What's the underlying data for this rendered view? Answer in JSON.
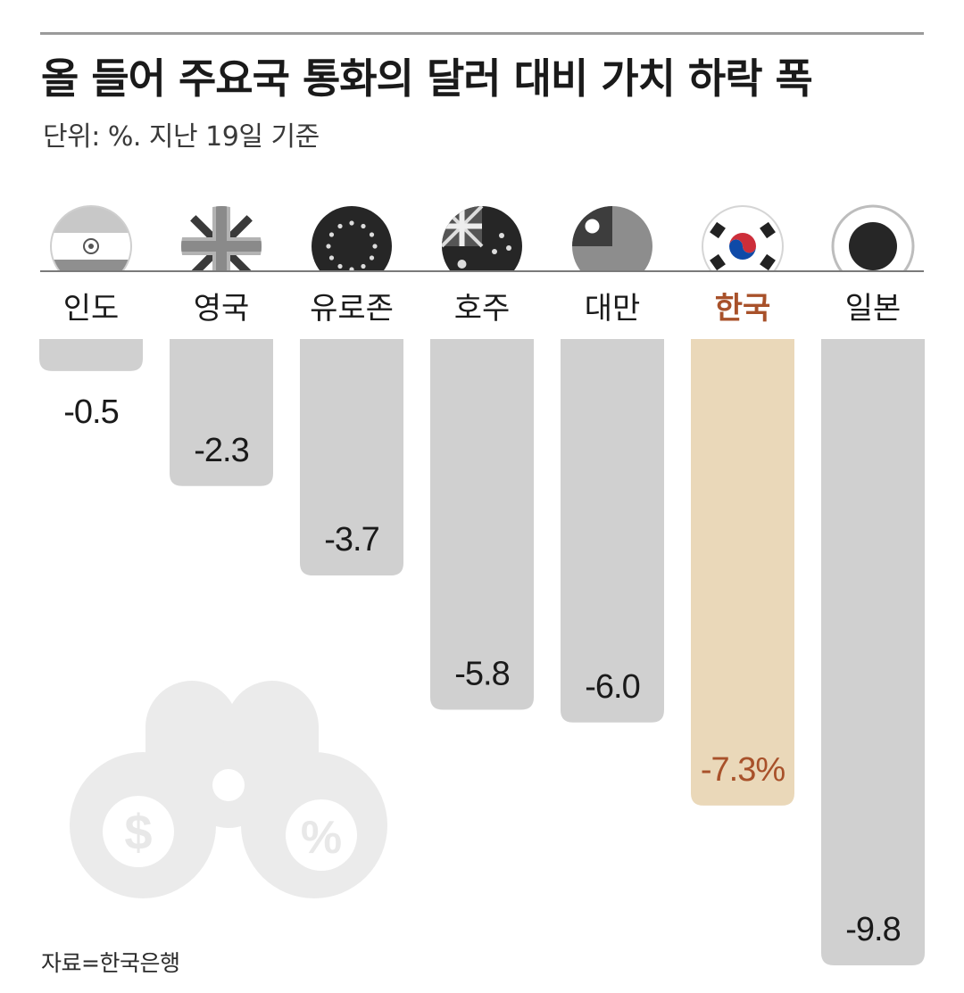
{
  "title": "올 들어 주요국 통화의 달러 대비 가치 하락 폭",
  "subtitle": "단위: %. 지난 19일 기준",
  "source": "자료=한국은행",
  "colors": {
    "bar": "#d0d0d0",
    "highlight_bar": "#ead8b9",
    "highlight_text": "#a8512a",
    "text": "#1a1a1a",
    "flag_gray": "#b3b3b3",
    "flag_dark": "#262626"
  },
  "chart_data": {
    "type": "bar",
    "title": "올 들어 주요국 통화의 달러 대비 가치 하락 폭",
    "subtitle": "단위: %. 지난 19일 기준",
    "categories": [
      "인도",
      "영국",
      "유로존",
      "호주",
      "대만",
      "한국",
      "일본"
    ],
    "values": [
      -0.5,
      -2.3,
      -3.7,
      -5.8,
      -6.0,
      -7.3,
      -9.8
    ],
    "value_labels": [
      "-0.5",
      "-2.3",
      "-3.7",
      "-5.8",
      "-6.0",
      "-7.3%",
      "-9.8"
    ],
    "flags": [
      "india-flag-icon",
      "uk-flag-icon",
      "eu-flag-icon",
      "australia-flag-icon",
      "taiwan-flag-icon",
      "korea-flag-icon",
      "japan-flag-icon"
    ],
    "highlight_category": "한국",
    "ylim": [
      -9.8,
      0
    ],
    "orientation": "downward"
  }
}
